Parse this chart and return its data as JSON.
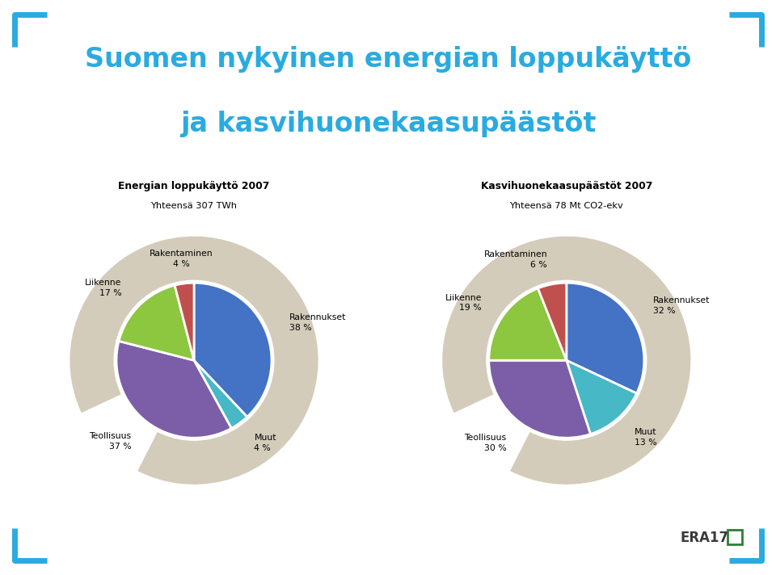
{
  "title_line1": "Suomen nykyinen energian loppukäyttö",
  "title_line2": "ja kasvihuonekaasupäästöt",
  "title_color": "#2AABE0",
  "background_color": "#FFFFFF",
  "chart1": {
    "title": "Energian loppukäyttö 2007",
    "subtitle": "Yhteensä 307 TWh",
    "slices": [
      {
        "label": "Rakennukset",
        "pct": 38,
        "color": "#4472C4"
      },
      {
        "label": "Muut",
        "pct": 4,
        "color": "#47B8C5"
      },
      {
        "label": "Teollisuus",
        "pct": 37,
        "color": "#7B5EA7"
      },
      {
        "label": "Liikenne",
        "pct": 17,
        "color": "#8DC63F"
      },
      {
        "label": "Rakentaminen",
        "pct": 4,
        "color": "#C0504D"
      }
    ]
  },
  "chart2": {
    "title": "Kasvihuonekaasupäästöt 2007",
    "subtitle": "Yhteensä 78 Mt CO2-ekv",
    "slices": [
      {
        "label": "Rakennukset",
        "pct": 32,
        "color": "#4472C4"
      },
      {
        "label": "Muut",
        "pct": 13,
        "color": "#47B8C5"
      },
      {
        "label": "Teollisuus",
        "pct": 30,
        "color": "#7B5EA7"
      },
      {
        "label": "Liikenne",
        "pct": 19,
        "color": "#8DC63F"
      },
      {
        "label": "Rakentaminen",
        "pct": 6,
        "color": "#C0504D"
      }
    ]
  },
  "donut_bg_color": "#D3CCBA",
  "corner_color": "#2AABE0"
}
